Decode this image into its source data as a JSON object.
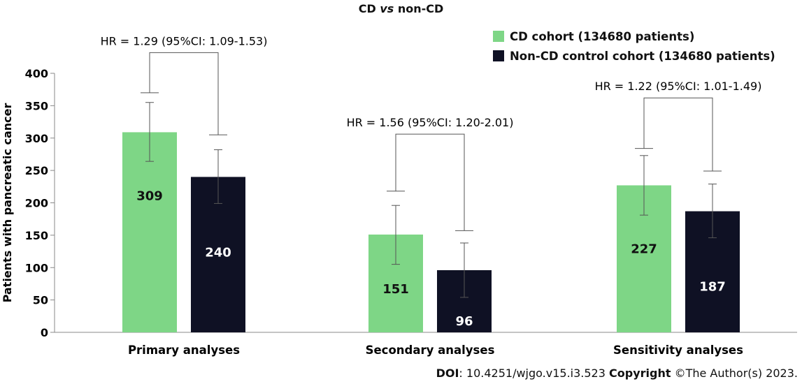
{
  "title": {
    "prefix": "CD",
    "vs": "vs",
    "suffix": "non-CD"
  },
  "legend": [
    {
      "label": "CD cohort (134680 patients)",
      "color": "#7ed686"
    },
    {
      "label": "Non-CD control cohort (134680 patients)",
      "color": "#0f1124"
    }
  ],
  "footer": {
    "doi_label": "DOI",
    "doi_value": ": 10.4251/wjgo.v15.i3.523",
    "copyright_label": "Copyright",
    "copyright_value": " ©The Author(s) 2023."
  },
  "chart_data": {
    "type": "bar",
    "ylabel": "Patients with pancreatic cancer",
    "ylim": [
      0,
      400
    ],
    "yticks": [
      0,
      50,
      100,
      150,
      200,
      250,
      300,
      350,
      400
    ],
    "categories": [
      "Primary analyses",
      "Secondary analyses",
      "Sensitivity analyses"
    ],
    "series": [
      {
        "name": "CD cohort (134680 patients)",
        "color": "#7ed686",
        "values": [
          309,
          151,
          227
        ],
        "error": [
          [
            264,
            355
          ],
          [
            105,
            196
          ],
          [
            181,
            273
          ]
        ]
      },
      {
        "name": "Non-CD control cohort (134680 patients)",
        "color": "#0f1124",
        "values": [
          240,
          96,
          187
        ],
        "error": [
          [
            199,
            282
          ],
          [
            54,
            138
          ],
          [
            146,
            229
          ]
        ]
      }
    ],
    "annotations": [
      {
        "text": "HR = 1.29 (95%CI: 1.09-1.53)",
        "category": 0,
        "left_y": 370,
        "right_y": 305,
        "top_y": 432
      },
      {
        "text": "HR = 1.56 (95%CI: 1.20-2.01)",
        "category": 1,
        "left_y": 218,
        "right_y": 157,
        "top_y": 306
      },
      {
        "text": "HR = 1.22 (95%CI: 1.01-1.49)",
        "category": 2,
        "left_y": 284,
        "right_y": 249,
        "top_y": 362
      }
    ],
    "grid": false,
    "legend_position": "top-right"
  }
}
